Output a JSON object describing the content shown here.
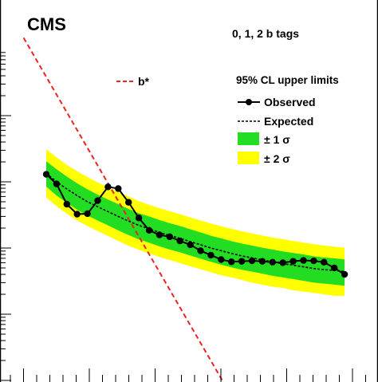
{
  "experiment_label": "CMS",
  "category_label": "0, 1, 2 b tags",
  "legend": {
    "title": "95% CL upper limits",
    "observed": "Observed",
    "expected": "Expected",
    "one_sigma": "± 1 σ",
    "two_sigma": "± 2 σ",
    "theory": "b*"
  },
  "colors": {
    "observed": "#000000",
    "expected": "#000000",
    "one_sigma": "#22dd22",
    "two_sigma": "#ffff00",
    "theory": "#ee2222"
  },
  "chart_data": {
    "type": "line",
    "y_scale": "log",
    "grid": false,
    "legend_position": "top-right",
    "x": [
      1,
      2,
      3,
      4,
      5,
      6,
      7,
      8,
      9,
      10,
      11,
      12,
      13,
      14,
      15,
      16,
      17,
      18,
      19,
      20,
      21,
      22,
      23,
      24,
      25,
      26,
      27,
      28,
      29,
      30
    ],
    "series": [
      {
        "name": "Observed",
        "values": [
          1.3,
          0.93,
          0.46,
          0.325,
          0.33,
          0.52,
          0.84,
          0.79,
          0.49,
          0.285,
          0.185,
          0.158,
          0.148,
          0.128,
          0.112,
          0.091,
          0.078,
          0.067,
          0.062,
          0.063,
          0.064,
          0.063,
          0.061,
          0.06,
          0.063,
          0.065,
          0.064,
          0.061,
          0.05,
          0.04
        ]
      },
      {
        "name": "Expected",
        "values": [
          1.35,
          1.0,
          0.78,
          0.62,
          0.5,
          0.42,
          0.355,
          0.3,
          0.255,
          0.22,
          0.195,
          0.172,
          0.155,
          0.14,
          0.125,
          0.112,
          0.1,
          0.091,
          0.083,
          0.076,
          0.071,
          0.066,
          0.062,
          0.058,
          0.055,
          0.052,
          0.049,
          0.047,
          0.046,
          0.044
        ]
      },
      {
        "name": "± 1 σ band",
        "lower": [
          0.85,
          0.62,
          0.48,
          0.38,
          0.31,
          0.26,
          0.22,
          0.185,
          0.157,
          0.135,
          0.12,
          0.106,
          0.095,
          0.086,
          0.077,
          0.069,
          0.062,
          0.056,
          0.051,
          0.047,
          0.044,
          0.041,
          0.038,
          0.036,
          0.034,
          0.032,
          0.03,
          0.029,
          0.028,
          0.027
        ],
        "upper": [
          2.05,
          1.55,
          1.2,
          0.95,
          0.77,
          0.64,
          0.54,
          0.46,
          0.39,
          0.335,
          0.3,
          0.265,
          0.237,
          0.215,
          0.192,
          0.172,
          0.153,
          0.14,
          0.127,
          0.117,
          0.109,
          0.101,
          0.095,
          0.089,
          0.084,
          0.08,
          0.075,
          0.072,
          0.07,
          0.067
        ]
      },
      {
        "name": "± 2 σ band",
        "lower": [
          0.58,
          0.43,
          0.33,
          0.26,
          0.215,
          0.18,
          0.152,
          0.128,
          0.108,
          0.094,
          0.083,
          0.073,
          0.066,
          0.059,
          0.053,
          0.048,
          0.043,
          0.039,
          0.036,
          0.033,
          0.03,
          0.028,
          0.026,
          0.025,
          0.023,
          0.022,
          0.021,
          0.02,
          0.019,
          0.019
        ],
        "upper": [
          3.1,
          2.35,
          1.8,
          1.45,
          1.18,
          0.98,
          0.83,
          0.7,
          0.6,
          0.51,
          0.45,
          0.4,
          0.36,
          0.325,
          0.29,
          0.26,
          0.235,
          0.213,
          0.195,
          0.179,
          0.166,
          0.154,
          0.144,
          0.136,
          0.128,
          0.121,
          0.114,
          0.109,
          0.105,
          0.101
        ]
      },
      {
        "name": "b*",
        "x": [
          -1.2,
          18.6
        ],
        "values": [
          150,
          0.00074
        ]
      }
    ]
  }
}
